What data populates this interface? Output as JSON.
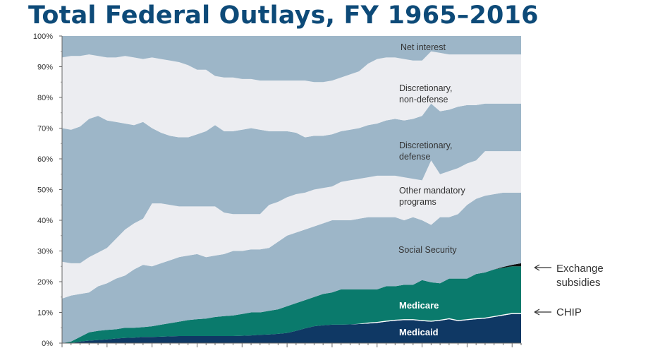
{
  "header": {
    "title": "Total Federal Outlays, FY 1965–2016"
  },
  "chart_data": {
    "type": "area",
    "stacked": true,
    "title": "Total Federal Outlays, FY 1965–2016",
    "xlabel": "",
    "ylabel": "",
    "ylim": [
      0,
      100
    ],
    "yticks": [
      "0%",
      "10%",
      "20%",
      "30%",
      "40%",
      "50%",
      "60%",
      "70%",
      "80%",
      "90%",
      "100%"
    ],
    "xlim": [
      1965,
      2016
    ],
    "grid": false,
    "colors": {
      "medicaid": "#0f3864",
      "chip": "#ffffff",
      "medicare": "#0a7a6c",
      "exchange": "#111111",
      "light_band": "#ecedf1",
      "blue_band": "#9db6c8"
    },
    "x": [
      1965,
      1966,
      1967,
      1968,
      1969,
      1970,
      1971,
      1972,
      1973,
      1974,
      1975,
      1976,
      1977,
      1978,
      1979,
      1980,
      1981,
      1982,
      1983,
      1984,
      1985,
      1986,
      1987,
      1988,
      1989,
      1990,
      1991,
      1992,
      1993,
      1994,
      1995,
      1996,
      1997,
      1998,
      1999,
      2000,
      2001,
      2002,
      2003,
      2004,
      2005,
      2006,
      2007,
      2008,
      2009,
      2010,
      2011,
      2012,
      2013,
      2014,
      2015,
      2016
    ],
    "series_order_bottom_to_top": [
      "Medicaid",
      "CHIP",
      "Medicare",
      "Exchange subsidies",
      "Social Security",
      "Other mandatory programs",
      "Discretionary, defense",
      "Discretionary, non-defense",
      "Net interest"
    ],
    "cumulative_top_boundaries": [
      {
        "name": "Medicaid",
        "values": [
          0,
          0,
          0.5,
          0.8,
          1,
          1.2,
          1.5,
          1.7,
          1.8,
          2,
          2,
          2.1,
          2.2,
          2.3,
          2.3,
          2.3,
          2.3,
          2.3,
          2.3,
          2.3,
          2.4,
          2.5,
          2.7,
          2.8,
          3,
          3.3,
          4,
          4.8,
          5.5,
          5.8,
          6,
          6,
          6.1,
          6.2,
          6.4,
          6.6,
          7,
          7.3,
          7.5,
          7.5,
          7.2,
          7,
          7.3,
          7.8,
          7.2,
          7.5,
          7.8,
          8,
          8.5,
          9,
          9.5,
          9.5
        ]
      },
      {
        "name": "CHIP",
        "values": [
          0,
          0,
          0.5,
          0.8,
          1,
          1.2,
          1.5,
          1.7,
          1.8,
          2,
          2,
          2.1,
          2.2,
          2.3,
          2.3,
          2.3,
          2.3,
          2.3,
          2.3,
          2.3,
          2.4,
          2.5,
          2.7,
          2.8,
          3,
          3.3,
          4,
          4.8,
          5.5,
          5.8,
          6,
          6,
          6.1,
          6.3,
          6.7,
          6.9,
          7.3,
          7.6,
          7.8,
          7.8,
          7.5,
          7.3,
          7.6,
          8.1,
          7.5,
          7.8,
          8.1,
          8.3,
          8.8,
          9.3,
          9.8,
          9.8
        ]
      },
      {
        "name": "Medicare",
        "values": [
          0,
          0.5,
          2,
          3.5,
          4,
          4.3,
          4.5,
          5,
          5,
          5.2,
          5.5,
          6,
          6.5,
          7,
          7.5,
          7.8,
          8,
          8.5,
          8.8,
          9,
          9.5,
          10,
          10,
          10.5,
          11,
          12,
          13,
          14,
          15,
          16,
          16.5,
          17.5,
          17.5,
          17.5,
          17.5,
          17.5,
          18.5,
          18.5,
          19,
          19,
          20.5,
          19.8,
          19.5,
          21,
          21,
          21,
          22.5,
          23,
          24,
          24.5,
          25,
          25
        ]
      },
      {
        "name": "Exchange subsidies",
        "values": [
          0,
          0.5,
          2,
          3.5,
          4,
          4.3,
          4.5,
          5,
          5,
          5.2,
          5.5,
          6,
          6.5,
          7,
          7.5,
          7.8,
          8,
          8.5,
          8.8,
          9,
          9.5,
          10,
          10,
          10.5,
          11,
          12,
          13,
          14,
          15,
          16,
          16.5,
          17.5,
          17.5,
          17.5,
          17.5,
          17.5,
          18.5,
          18.5,
          19,
          19,
          20.5,
          19.8,
          19.5,
          21,
          21,
          21,
          22.5,
          23,
          24,
          24.8,
          25.5,
          26
        ]
      },
      {
        "name": "Social Security",
        "values": [
          14.5,
          15.5,
          16,
          16.5,
          18.5,
          19.5,
          21,
          22,
          24,
          25.5,
          25,
          26,
          27,
          28,
          28.5,
          29,
          28,
          28.5,
          29,
          30,
          30,
          30.5,
          30.5,
          31,
          33,
          35,
          36,
          37,
          38,
          39,
          40,
          40,
          40,
          40.5,
          41,
          41,
          41,
          41,
          40,
          41,
          40,
          38.5,
          41,
          41,
          42,
          45,
          47,
          48,
          48.5,
          49,
          49,
          49
        ]
      },
      {
        "name": "Other mandatory programs",
        "values": [
          26.5,
          26,
          26,
          28,
          29.5,
          31,
          34,
          37,
          39,
          40.5,
          45.5,
          45.5,
          45,
          44.5,
          44.5,
          44.5,
          44.5,
          44.5,
          42.5,
          42,
          42,
          42,
          42,
          45,
          46,
          47.5,
          48.5,
          49,
          50,
          50.5,
          51,
          52.5,
          53,
          53.5,
          54,
          54.5,
          54.5,
          54.5,
          54,
          53.5,
          53,
          59.5,
          55,
          56,
          57,
          58.5,
          59.5,
          62.5,
          62.5,
          62.5,
          62.5,
          62.5
        ]
      },
      {
        "name": "Discretionary, defense",
        "values": [
          70,
          69.5,
          70.5,
          73,
          74,
          72.5,
          72,
          71.5,
          71,
          72,
          70,
          68.5,
          67.5,
          67,
          67,
          68,
          69,
          71,
          69,
          69,
          69.5,
          70,
          69.5,
          69,
          69,
          69,
          68.5,
          67,
          67.5,
          67.5,
          68,
          69,
          69.5,
          70,
          71,
          71.5,
          72.5,
          73,
          72.5,
          73,
          74,
          78,
          75.5,
          76,
          77,
          77.5,
          77.5,
          78,
          78,
          78,
          78,
          78
        ]
      },
      {
        "name": "Discretionary, non-defense",
        "values": [
          93,
          93.5,
          93.5,
          94,
          93.5,
          93,
          93,
          93.5,
          93,
          92.5,
          93,
          92.5,
          92,
          91.5,
          90.5,
          89,
          89,
          87,
          86.5,
          86.5,
          86,
          86,
          85.5,
          85.5,
          85.5,
          85.5,
          85.5,
          85.5,
          85,
          85,
          85.5,
          86.5,
          87.5,
          88.5,
          91,
          92.5,
          93,
          93,
          92.5,
          92,
          92,
          95,
          94.5,
          94,
          94,
          94,
          94,
          94,
          94,
          94,
          94,
          94
        ]
      },
      {
        "name": "Net interest",
        "values": [
          100,
          100,
          100,
          100,
          100,
          100,
          100,
          100,
          100,
          100,
          100,
          100,
          100,
          100,
          100,
          100,
          100,
          100,
          100,
          100,
          100,
          100,
          100,
          100,
          100,
          100,
          100,
          100,
          100,
          100,
          100,
          100,
          100,
          100,
          100,
          100,
          100,
          100,
          100,
          100,
          100,
          100,
          100,
          100,
          100,
          100,
          100,
          100,
          100,
          100,
          100,
          100
        ]
      }
    ],
    "annotations": {
      "net_interest": [
        "Net interest"
      ],
      "disc_nondef": [
        "Discretionary,",
        "non-defense"
      ],
      "disc_def": [
        "Discretionary,",
        "defense"
      ],
      "other_mand": [
        "Other mandatory",
        "programs"
      ],
      "social_security": [
        "Social Security"
      ],
      "medicare": [
        "Medicare"
      ],
      "medicaid": [
        "Medicaid"
      ],
      "exchange": [
        "Exchange",
        "subsidies"
      ],
      "chip": [
        "CHIP"
      ]
    }
  }
}
